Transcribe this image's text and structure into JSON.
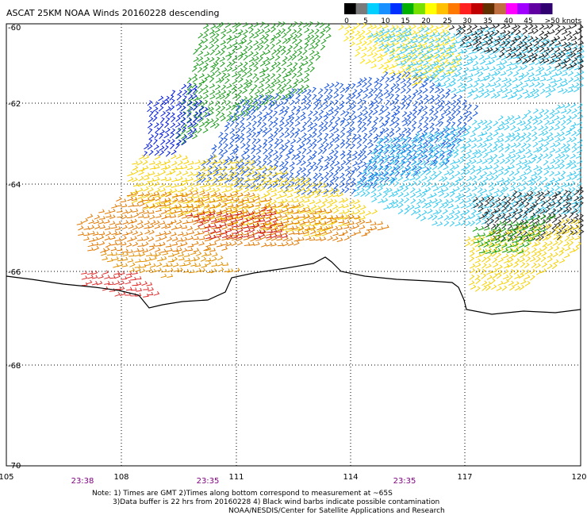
{
  "header": {
    "title": "ASCAT 25KM NOAA Winds 20160228 descending"
  },
  "legend": {
    "colors": [
      "#000000",
      "#7a7a7a",
      "#00cfff",
      "#1890ff",
      "#0030ff",
      "#00b000",
      "#78e000",
      "#ffff00",
      "#ffc000",
      "#ff7800",
      "#ff2020",
      "#c00000",
      "#603000",
      "#c07040",
      "#ff00ff",
      "#a000ff",
      "#6000a0",
      "#300070"
    ],
    "tick_labels": [
      "0",
      "5",
      "10",
      "15",
      "20",
      "25",
      "30",
      "35",
      "40",
      "45",
      ">50 knots"
    ],
    "unit": "knots"
  },
  "map": {
    "longitude_labels": [
      "105",
      "108",
      "111",
      "114",
      "117",
      "120"
    ],
    "latitude_labels": [
      "-60",
      "-62",
      "-64",
      "-66",
      "-68",
      "-70"
    ],
    "pass_times": [
      "23:38",
      "23:35",
      "23:35"
    ]
  },
  "wind_swath": {
    "direction": "descending",
    "resolution": "25KM",
    "date": "20160228"
  },
  "footer": {
    "note_line1": "Note: 1) Times are GMT 2)Times along bottom correspond to measurement at ~65S",
    "note_line2": "3)Data buffer is 22 hrs from 20160228 4) Black wind barbs indicate possible contamination",
    "note_line3": "NOAA/NESDIS/Center for Satellite Applications and Research"
  },
  "colors": {
    "grid": "#000000",
    "time_label": "#800080",
    "coastline": "#000000"
  }
}
